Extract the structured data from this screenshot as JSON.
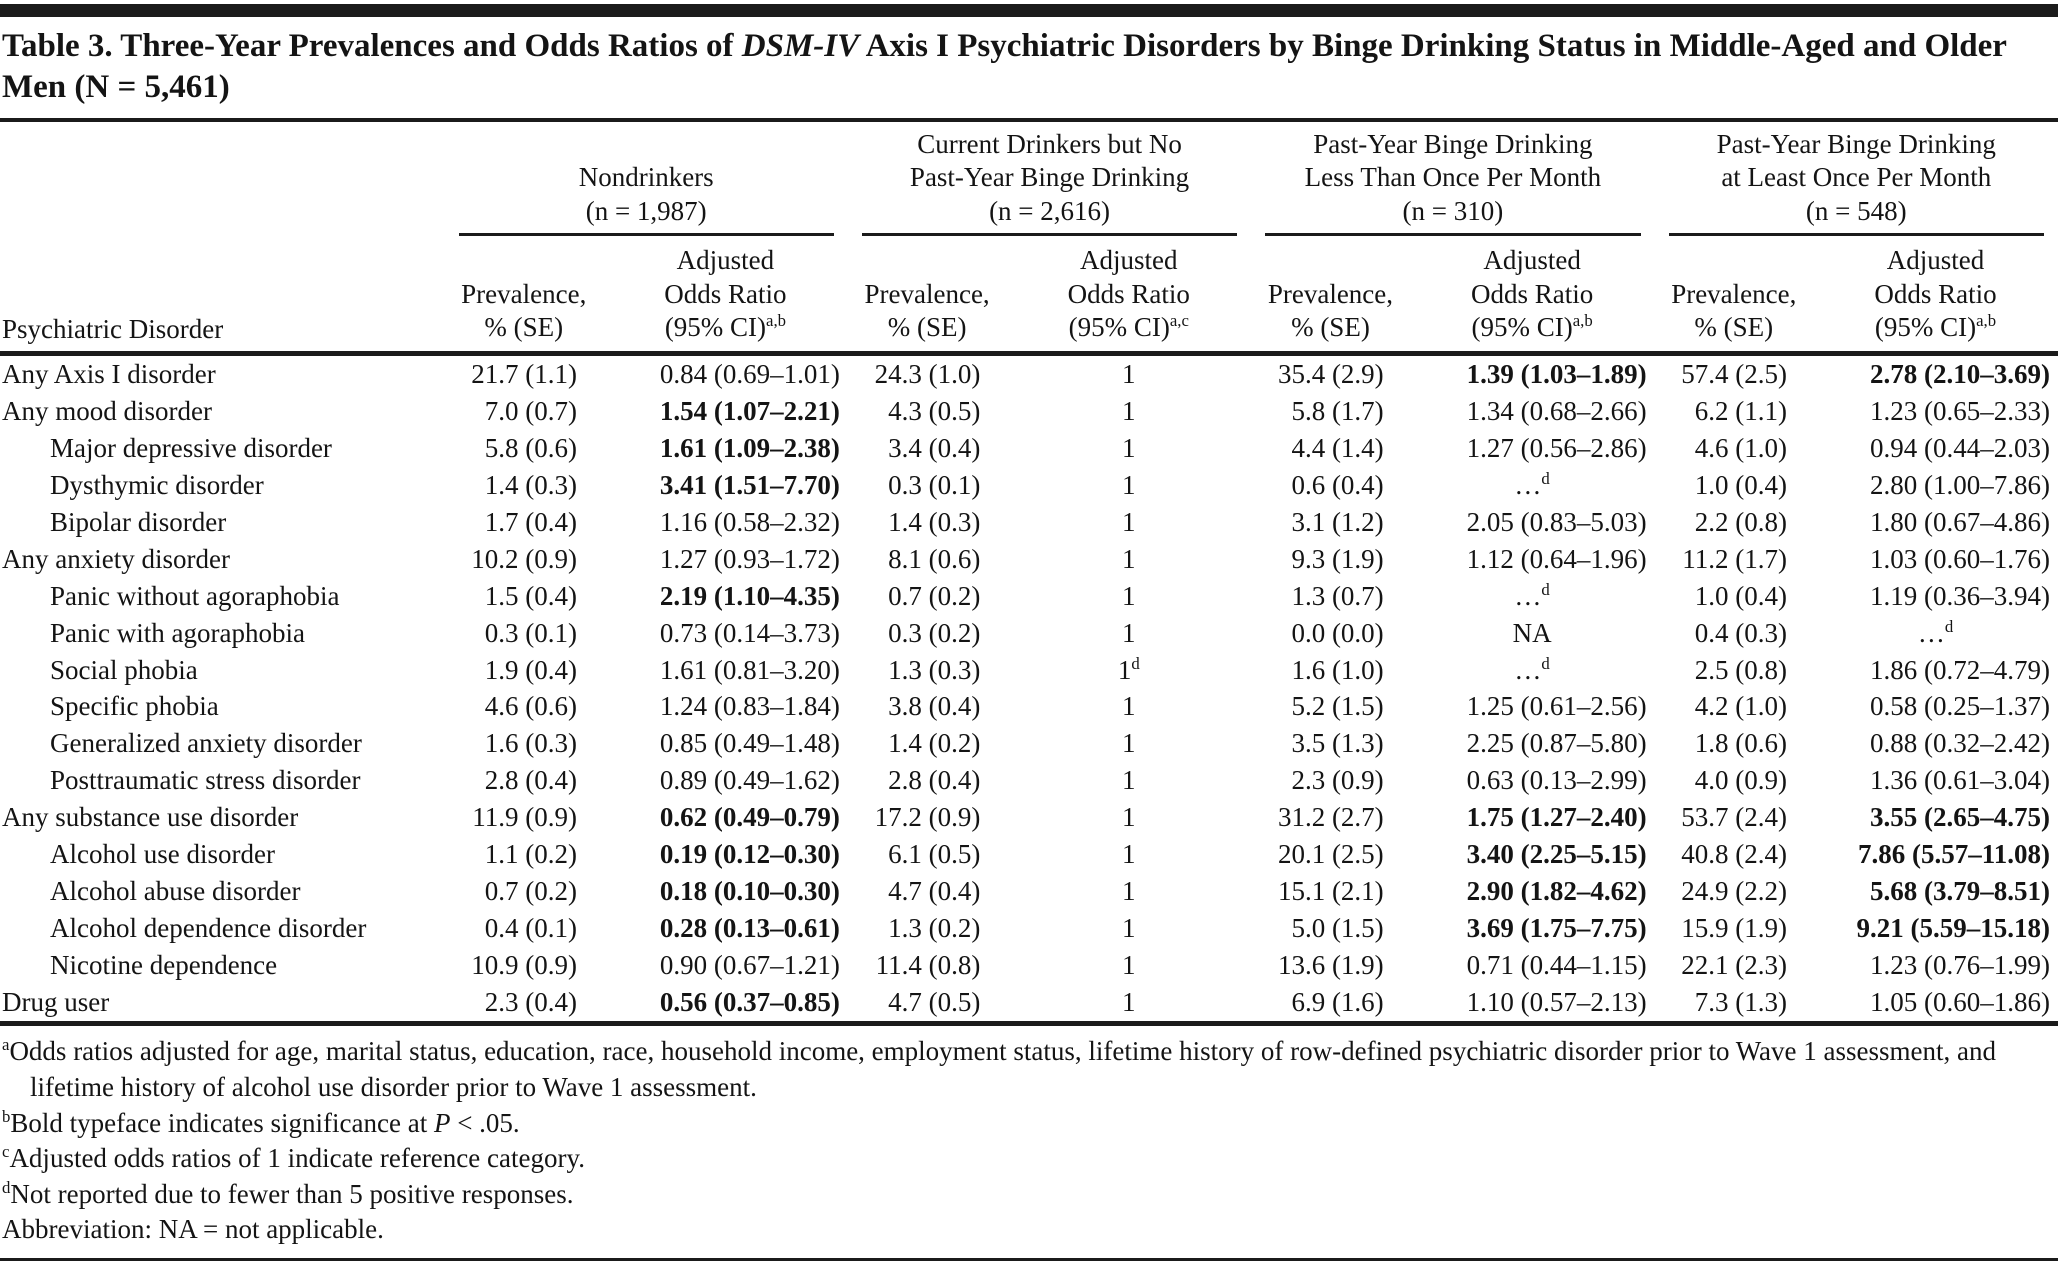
{
  "title": {
    "part1": "Table 3. Three-Year Prevalences and Odds Ratios of ",
    "italic": "DSM-IV",
    "part2": " Axis I Psychiatric Disorders by Binge Drinking Status in Middle-Aged and Older Men (N = 5,461)"
  },
  "header": {
    "row_label": "Psychiatric Disorder",
    "groups": [
      {
        "lines": [
          "Nondrinkers",
          "(n = 1,987)"
        ],
        "prev_lines": [
          "Prevalence,",
          "% (SE)"
        ],
        "or_lines": [
          "Adjusted",
          "Odds Ratio",
          "(95% CI)"
        ],
        "or_sup": "a,b"
      },
      {
        "lines": [
          "Current Drinkers but No",
          "Past-Year Binge Drinking",
          "(n = 2,616)"
        ],
        "prev_lines": [
          "Prevalence,",
          "% (SE)"
        ],
        "or_lines": [
          "Adjusted",
          "Odds Ratio",
          "(95% CI)"
        ],
        "or_sup": "a,c"
      },
      {
        "lines": [
          "Past-Year Binge Drinking",
          "Less Than Once Per Month",
          "(n = 310)"
        ],
        "prev_lines": [
          "Prevalence,",
          "% (SE)"
        ],
        "or_lines": [
          "Adjusted",
          "Odds Ratio",
          "(95% CI)"
        ],
        "or_sup": "a,b"
      },
      {
        "lines": [
          "Past-Year Binge Drinking",
          "at Least Once Per Month",
          "(n = 548)"
        ],
        "prev_lines": [
          "Prevalence,",
          "% (SE)"
        ],
        "or_lines": [
          "Adjusted",
          "Odds Ratio",
          "(95% CI)"
        ],
        "or_sup": "a,b"
      }
    ]
  },
  "rows": [
    {
      "label": "Any Axis I disorder",
      "indent": false,
      "cells": [
        {
          "t": "21.7 (1.1)"
        },
        {
          "t": "0.84 (0.69–1.01)"
        },
        {
          "t": "24.3 (1.0)"
        },
        {
          "t": "1",
          "c": true
        },
        {
          "t": "35.4 (2.9)"
        },
        {
          "t": "1.39 (1.03–1.89)",
          "b": true
        },
        {
          "t": "57.4 (2.5)"
        },
        {
          "t": "2.78 (2.10–3.69)",
          "b": true
        }
      ]
    },
    {
      "label": "Any mood disorder",
      "indent": false,
      "cells": [
        {
          "t": "7.0 (0.7)"
        },
        {
          "t": "1.54 (1.07–2.21)",
          "b": true
        },
        {
          "t": "4.3 (0.5)"
        },
        {
          "t": "1",
          "c": true
        },
        {
          "t": "5.8 (1.7)"
        },
        {
          "t": "1.34 (0.68–2.66)"
        },
        {
          "t": "6.2 (1.1)"
        },
        {
          "t": "1.23 (0.65–2.33)"
        }
      ]
    },
    {
      "label": "Major depressive disorder",
      "indent": true,
      "cells": [
        {
          "t": "5.8 (0.6)"
        },
        {
          "t": "1.61 (1.09–2.38)",
          "b": true
        },
        {
          "t": "3.4 (0.4)"
        },
        {
          "t": "1",
          "c": true
        },
        {
          "t": "4.4 (1.4)"
        },
        {
          "t": "1.27 (0.56–2.86)"
        },
        {
          "t": "4.6 (1.0)"
        },
        {
          "t": "0.94 (0.44–2.03)"
        }
      ]
    },
    {
      "label": "Dysthymic disorder",
      "indent": true,
      "cells": [
        {
          "t": "1.4 (0.3)"
        },
        {
          "t": "3.41 (1.51–7.70)",
          "b": true
        },
        {
          "t": "0.3 (0.1)"
        },
        {
          "t": "1",
          "c": true
        },
        {
          "t": "0.6 (0.4)"
        },
        {
          "t": "…",
          "sup": "d",
          "c": true
        },
        {
          "t": "1.0 (0.4)"
        },
        {
          "t": "2.80 (1.00–7.86)"
        }
      ]
    },
    {
      "label": "Bipolar disorder",
      "indent": true,
      "cells": [
        {
          "t": "1.7 (0.4)"
        },
        {
          "t": "1.16 (0.58–2.32)"
        },
        {
          "t": "1.4 (0.3)"
        },
        {
          "t": "1",
          "c": true
        },
        {
          "t": "3.1 (1.2)"
        },
        {
          "t": "2.05 (0.83–5.03)"
        },
        {
          "t": "2.2 (0.8)"
        },
        {
          "t": "1.80 (0.67–4.86)"
        }
      ]
    },
    {
      "label": "Any anxiety disorder",
      "indent": false,
      "cells": [
        {
          "t": "10.2 (0.9)"
        },
        {
          "t": "1.27 (0.93–1.72)"
        },
        {
          "t": "8.1 (0.6)"
        },
        {
          "t": "1",
          "c": true
        },
        {
          "t": "9.3 (1.9)"
        },
        {
          "t": "1.12 (0.64–1.96)"
        },
        {
          "t": "11.2 (1.7)"
        },
        {
          "t": "1.03 (0.60–1.76)"
        }
      ]
    },
    {
      "label": "Panic without agoraphobia",
      "indent": true,
      "cells": [
        {
          "t": "1.5 (0.4)"
        },
        {
          "t": "2.19 (1.10–4.35)",
          "b": true
        },
        {
          "t": "0.7 (0.2)"
        },
        {
          "t": "1",
          "c": true
        },
        {
          "t": "1.3 (0.7)"
        },
        {
          "t": "…",
          "sup": "d",
          "c": true
        },
        {
          "t": "1.0 (0.4)"
        },
        {
          "t": "1.19 (0.36–3.94)"
        }
      ]
    },
    {
      "label": "Panic with agoraphobia",
      "indent": true,
      "cells": [
        {
          "t": "0.3 (0.1)"
        },
        {
          "t": "0.73 (0.14–3.73)"
        },
        {
          "t": "0.3 (0.2)"
        },
        {
          "t": "1",
          "c": true
        },
        {
          "t": "0.0 (0.0)"
        },
        {
          "t": "NA",
          "c": true
        },
        {
          "t": "0.4 (0.3)"
        },
        {
          "t": "…",
          "sup": "d",
          "c": true
        }
      ]
    },
    {
      "label": "Social phobia",
      "indent": true,
      "cells": [
        {
          "t": "1.9 (0.4)"
        },
        {
          "t": "1.61 (0.81–3.20)"
        },
        {
          "t": "1.3 (0.3)"
        },
        {
          "t": "1",
          "sup": "d",
          "c": true
        },
        {
          "t": "1.6 (1.0)"
        },
        {
          "t": "…",
          "sup": "d",
          "c": true
        },
        {
          "t": "2.5 (0.8)"
        },
        {
          "t": "1.86 (0.72–4.79)"
        }
      ]
    },
    {
      "label": "Specific phobia",
      "indent": true,
      "cells": [
        {
          "t": "4.6 (0.6)"
        },
        {
          "t": "1.24 (0.83–1.84)"
        },
        {
          "t": "3.8 (0.4)"
        },
        {
          "t": "1",
          "c": true
        },
        {
          "t": "5.2 (1.5)"
        },
        {
          "t": "1.25 (0.61–2.56)"
        },
        {
          "t": "4.2 (1.0)"
        },
        {
          "t": "0.58 (0.25–1.37)"
        }
      ]
    },
    {
      "label": "Generalized anxiety disorder",
      "indent": true,
      "cells": [
        {
          "t": "1.6 (0.3)"
        },
        {
          "t": "0.85 (0.49–1.48)"
        },
        {
          "t": "1.4 (0.2)"
        },
        {
          "t": "1",
          "c": true
        },
        {
          "t": "3.5 (1.3)"
        },
        {
          "t": "2.25 (0.87–5.80)"
        },
        {
          "t": "1.8 (0.6)"
        },
        {
          "t": "0.88 (0.32–2.42)"
        }
      ]
    },
    {
      "label": "Posttraumatic stress disorder",
      "indent": true,
      "cells": [
        {
          "t": "2.8 (0.4)"
        },
        {
          "t": "0.89 (0.49–1.62)"
        },
        {
          "t": "2.8 (0.4)"
        },
        {
          "t": "1",
          "c": true
        },
        {
          "t": "2.3 (0.9)"
        },
        {
          "t": "0.63 (0.13–2.99)"
        },
        {
          "t": "4.0 (0.9)"
        },
        {
          "t": "1.36 (0.61–3.04)"
        }
      ]
    },
    {
      "label": "Any substance use disorder",
      "indent": false,
      "cells": [
        {
          "t": "11.9 (0.9)"
        },
        {
          "t": "0.62 (0.49–0.79)",
          "b": true
        },
        {
          "t": "17.2 (0.9)"
        },
        {
          "t": "1",
          "c": true
        },
        {
          "t": "31.2 (2.7)"
        },
        {
          "t": "1.75 (1.27–2.40)",
          "b": true
        },
        {
          "t": "53.7 (2.4)"
        },
        {
          "t": "3.55 (2.65–4.75)",
          "b": true
        }
      ]
    },
    {
      "label": "Alcohol use disorder",
      "indent": true,
      "cells": [
        {
          "t": "1.1 (0.2)"
        },
        {
          "t": "0.19 (0.12–0.30)",
          "b": true
        },
        {
          "t": "6.1 (0.5)"
        },
        {
          "t": "1",
          "c": true
        },
        {
          "t": "20.1 (2.5)"
        },
        {
          "t": "3.40 (2.25–5.15)",
          "b": true
        },
        {
          "t": "40.8 (2.4)"
        },
        {
          "t": "7.86 (5.57–11.08)",
          "b": true
        }
      ]
    },
    {
      "label": "Alcohol abuse disorder",
      "indent": true,
      "cells": [
        {
          "t": "0.7 (0.2)"
        },
        {
          "t": "0.18 (0.10–0.30)",
          "b": true
        },
        {
          "t": "4.7 (0.4)"
        },
        {
          "t": "1",
          "c": true
        },
        {
          "t": "15.1 (2.1)"
        },
        {
          "t": "2.90 (1.82–4.62)",
          "b": true
        },
        {
          "t": "24.9 (2.2)"
        },
        {
          "t": "5.68 (3.79–8.51)",
          "b": true
        }
      ]
    },
    {
      "label": "Alcohol dependence disorder",
      "indent": true,
      "cells": [
        {
          "t": "0.4 (0.1)"
        },
        {
          "t": "0.28 (0.13–0.61)",
          "b": true
        },
        {
          "t": "1.3 (0.2)"
        },
        {
          "t": "1",
          "c": true
        },
        {
          "t": "5.0 (1.5)"
        },
        {
          "t": "3.69 (1.75–7.75)",
          "b": true
        },
        {
          "t": "15.9 (1.9)"
        },
        {
          "t": "9.21 (5.59–15.18)",
          "b": true
        }
      ]
    },
    {
      "label": "Nicotine dependence",
      "indent": true,
      "cells": [
        {
          "t": "10.9 (0.9)"
        },
        {
          "t": "0.90 (0.67–1.21)"
        },
        {
          "t": "11.4 (0.8)"
        },
        {
          "t": "1",
          "c": true
        },
        {
          "t": "13.6 (1.9)"
        },
        {
          "t": "0.71 (0.44–1.15)"
        },
        {
          "t": "22.1 (2.3)"
        },
        {
          "t": "1.23 (0.76–1.99)"
        }
      ]
    },
    {
      "label": "Drug user",
      "indent": false,
      "cells": [
        {
          "t": "2.3 (0.4)"
        },
        {
          "t": "0.56 (0.37–0.85)",
          "b": true
        },
        {
          "t": "4.7 (0.5)"
        },
        {
          "t": "1",
          "c": true
        },
        {
          "t": "6.9 (1.6)"
        },
        {
          "t": "1.10 (0.57–2.13)"
        },
        {
          "t": "7.3 (1.3)"
        },
        {
          "t": "1.05 (0.60–1.86)"
        }
      ]
    }
  ],
  "footnotes": [
    {
      "sup": "a",
      "pre": "Odds ratios adjusted for age, marital status, education, race, household income, employment status, lifetime history of row-defined psychiatric disorder prior to Wave 1 assessment, and lifetime history of alcohol use disorder prior to Wave 1 assessment.",
      "italic": "",
      "post": ""
    },
    {
      "sup": "b",
      "pre": "Bold typeface indicates significance at ",
      "italic": "P",
      "post": " < .05."
    },
    {
      "sup": "c",
      "pre": "Adjusted odds ratios of 1 indicate reference category.",
      "italic": "",
      "post": ""
    },
    {
      "sup": "d",
      "pre": "Not reported due to fewer than 5 positive responses.",
      "italic": "",
      "post": ""
    },
    {
      "sup": "",
      "pre": "Abbreviation: NA = not applicable.",
      "italic": "",
      "post": ""
    }
  ]
}
